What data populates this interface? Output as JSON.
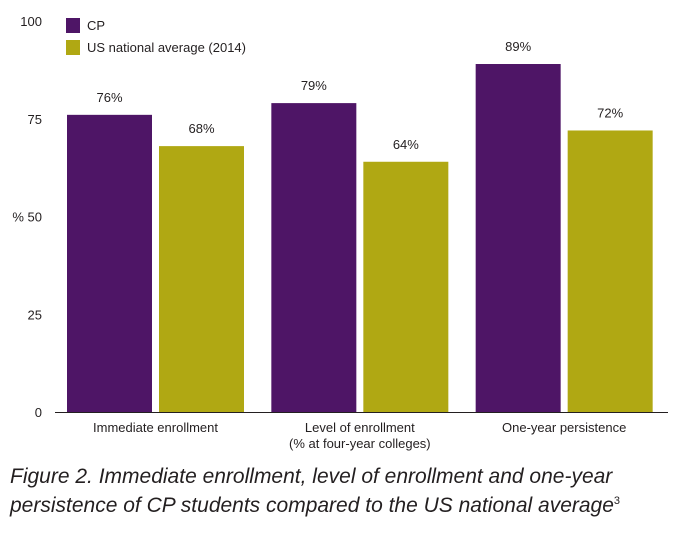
{
  "chart_data": {
    "type": "bar",
    "categories": [
      [
        "Immediate enrollment"
      ],
      [
        "Level of enrollment",
        "(% at four-year colleges)"
      ],
      [
        "One-year persistence"
      ]
    ],
    "series": [
      {
        "name": "CP",
        "color": "#4e1566",
        "values": [
          76,
          79,
          89
        ],
        "labels": [
          "76%",
          "79%",
          "89%"
        ]
      },
      {
        "name": "US national average (2014)",
        "color": "#b0a813",
        "values": [
          68,
          64,
          72
        ],
        "labels": [
          "68%",
          "64%",
          "72%"
        ]
      }
    ],
    "ylim": [
      0,
      100
    ],
    "yticks": [
      0,
      25,
      50,
      75,
      100
    ],
    "ytick_labels": [
      "0",
      "25",
      "% 50",
      "75",
      "100"
    ],
    "grid": false,
    "legend_position": "top-left"
  },
  "caption": {
    "text": "Figure 2. Immediate enrollment, level of enrollment and one-year persistence of CP students compared to the US national average",
    "footnote": "3"
  }
}
